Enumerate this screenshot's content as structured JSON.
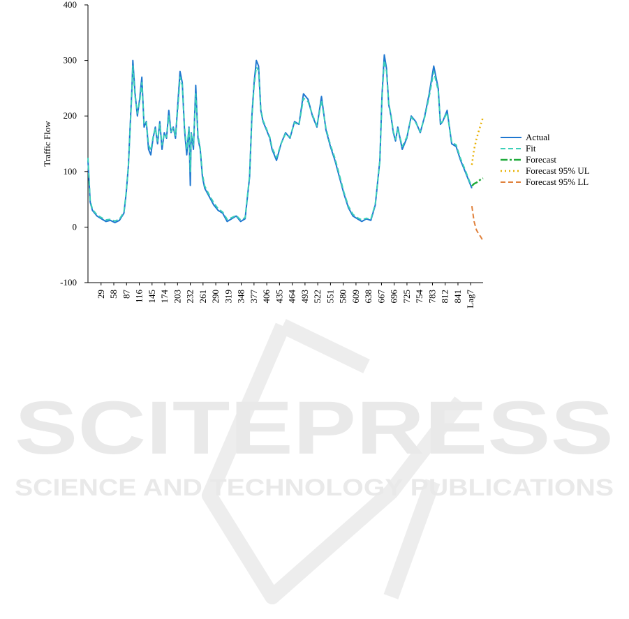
{
  "chart_data": {
    "type": "line",
    "title": "",
    "xlabel": "",
    "ylabel": "Traffic Flow",
    "ylim": [
      -100,
      400
    ],
    "yticks": [
      "400",
      "300",
      "200",
      "100",
      "0",
      "-100"
    ],
    "xlim": [
      0,
      880
    ],
    "xtick_labels": [
      "29",
      "58",
      "87",
      "116",
      "145",
      "174",
      "203",
      "232",
      "261",
      "290",
      "319",
      "348",
      "377",
      "406",
      "435",
      "464",
      "493",
      "522",
      "551",
      "580",
      "609",
      "638",
      "667",
      "696",
      "725",
      "754",
      "783",
      "812",
      "841",
      "Lag7"
    ],
    "legend_position": "right",
    "grid": false,
    "series": [
      {
        "name": "Actual",
        "style": "solid",
        "color": "#1f77d0",
        "x": [
          0,
          5,
          10,
          20,
          30,
          40,
          50,
          60,
          70,
          80,
          85,
          90,
          95,
          98,
          100,
          105,
          110,
          115,
          120,
          125,
          130,
          135,
          140,
          145,
          150,
          155,
          160,
          165,
          170,
          175,
          180,
          185,
          190,
          195,
          200,
          205,
          210,
          215,
          220,
          225,
          228,
          230,
          235,
          240,
          245,
          250,
          255,
          260,
          270,
          280,
          290,
          300,
          310,
          320,
          330,
          340,
          350,
          360,
          365,
          370,
          375,
          380,
          385,
          390,
          395,
          400,
          405,
          410,
          420,
          430,
          440,
          450,
          460,
          470,
          480,
          490,
          500,
          510,
          520,
          530,
          540,
          550,
          560,
          570,
          580,
          590,
          600,
          610,
          620,
          630,
          640,
          650,
          655,
          660,
          665,
          670,
          675,
          680,
          685,
          690,
          700,
          710,
          720,
          730,
          740,
          750,
          760,
          770,
          780,
          785,
          790,
          800,
          810,
          820,
          830,
          840,
          850,
          855
        ],
        "values": [
          120,
          45,
          30,
          20,
          15,
          10,
          12,
          8,
          12,
          25,
          60,
          110,
          200,
          250,
          300,
          240,
          200,
          230,
          270,
          180,
          190,
          140,
          130,
          160,
          180,
          150,
          190,
          140,
          170,
          160,
          210,
          170,
          180,
          160,
          220,
          280,
          260,
          175,
          130,
          180,
          75,
          170,
          140,
          255,
          160,
          140,
          90,
          70,
          55,
          40,
          30,
          25,
          10,
          15,
          20,
          10,
          15,
          90,
          200,
          260,
          300,
          290,
          210,
          190,
          180,
          170,
          160,
          140,
          120,
          150,
          170,
          160,
          190,
          185,
          240,
          230,
          200,
          180,
          235,
          175,
          145,
          120,
          90,
          60,
          35,
          20,
          15,
          10,
          15,
          12,
          40,
          120,
          240,
          310,
          285,
          220,
          200,
          170,
          155,
          180,
          140,
          160,
          200,
          190,
          170,
          200,
          240,
          290,
          250,
          185,
          190,
          210,
          150,
          145,
          120,
          100,
          80,
          70
        ]
      },
      {
        "name": "Fit",
        "style": "dashed",
        "color": "#3ccfb8",
        "x": [
          0,
          5,
          10,
          20,
          30,
          40,
          50,
          60,
          70,
          80,
          85,
          90,
          95,
          98,
          100,
          105,
          110,
          115,
          120,
          125,
          130,
          135,
          140,
          145,
          150,
          155,
          160,
          165,
          170,
          175,
          180,
          185,
          190,
          195,
          200,
          205,
          210,
          215,
          220,
          225,
          228,
          230,
          235,
          240,
          245,
          250,
          255,
          260,
          270,
          280,
          290,
          300,
          310,
          320,
          330,
          340,
          350,
          360,
          365,
          370,
          375,
          380,
          385,
          390,
          395,
          400,
          405,
          410,
          420,
          430,
          440,
          450,
          460,
          470,
          480,
          490,
          500,
          510,
          520,
          530,
          540,
          550,
          560,
          570,
          580,
          590,
          600,
          610,
          620,
          630,
          640,
          650,
          655,
          660,
          665,
          670,
          675,
          680,
          685,
          690,
          700,
          710,
          720,
          730,
          740,
          750,
          760,
          770,
          780,
          785,
          790,
          800,
          810,
          820,
          830,
          840,
          850,
          855
        ],
        "values": [
          125,
          48,
          32,
          22,
          17,
          13,
          14,
          11,
          14,
          27,
          62,
          108,
          195,
          245,
          290,
          235,
          205,
          225,
          260,
          185,
          188,
          148,
          138,
          162,
          178,
          155,
          185,
          148,
          168,
          162,
          200,
          172,
          178,
          165,
          212,
          270,
          255,
          180,
          140,
          178,
          100,
          168,
          148,
          240,
          165,
          142,
          95,
          74,
          58,
          44,
          33,
          27,
          14,
          17,
          21,
          13,
          17,
          92,
          195,
          255,
          288,
          282,
          212,
          192,
          182,
          172,
          162,
          143,
          125,
          150,
          168,
          162,
          188,
          184,
          232,
          226,
          202,
          182,
          228,
          178,
          148,
          124,
          94,
          63,
          38,
          23,
          17,
          13,
          16,
          14,
          42,
          118,
          235,
          300,
          280,
          222,
          202,
          172,
          158,
          178,
          145,
          162,
          198,
          188,
          172,
          198,
          235,
          280,
          246,
          188,
          190,
          206,
          153,
          148,
          123,
          103,
          82,
          74
        ]
      },
      {
        "name": "Forecast",
        "style": "dashdot",
        "color": "#1faa3a",
        "x": [
          855,
          860,
          865,
          870,
          875,
          880
        ],
        "values": [
          74,
          78,
          80,
          83,
          86,
          88
        ]
      },
      {
        "name": "Forecast 95% UL",
        "style": "dotted",
        "color": "#e8b000",
        "x": [
          855,
          860,
          865,
          870,
          875,
          880
        ],
        "values": [
          112,
          140,
          158,
          172,
          185,
          198
        ]
      },
      {
        "name": "Forecast 95% LL",
        "style": "dashed",
        "color": "#e0803a",
        "x": [
          855,
          860,
          865,
          870,
          875,
          880
        ],
        "values": [
          38,
          10,
          -5,
          -12,
          -18,
          -25
        ]
      }
    ]
  },
  "watermark": {
    "brand": "SCITEPRESS",
    "tagline": "SCIENCE AND TECHNOLOGY PUBLICATIONS"
  }
}
